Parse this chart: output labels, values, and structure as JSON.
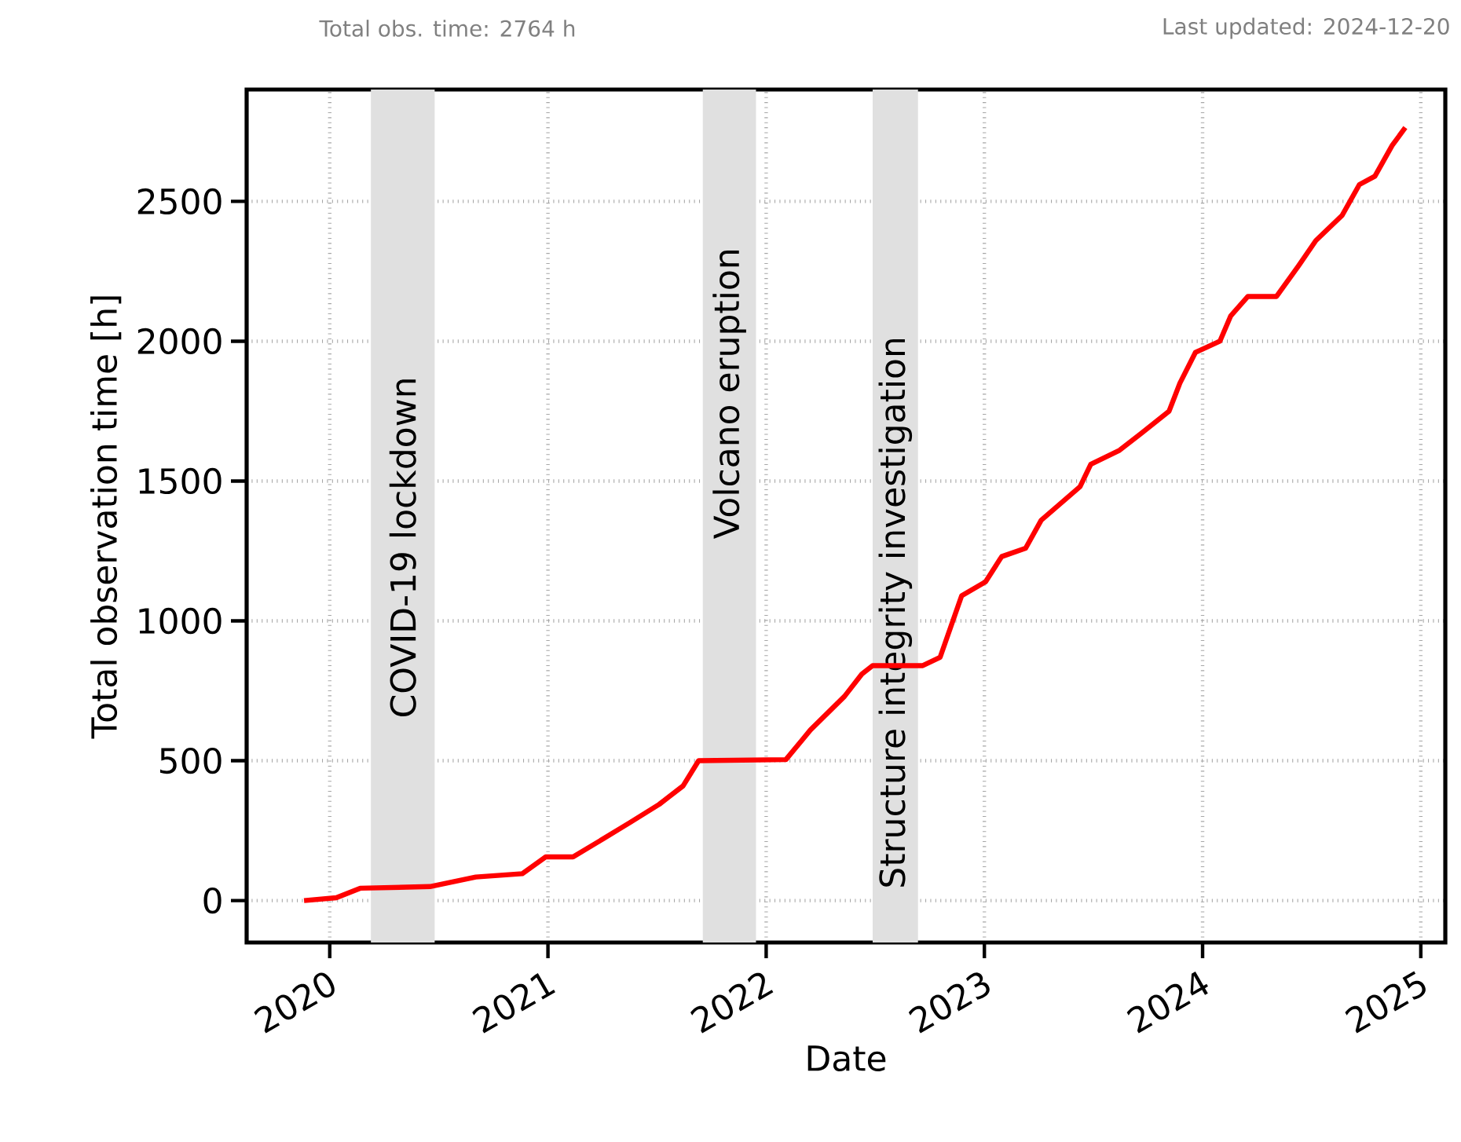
{
  "chart_data": {
    "type": "line",
    "annotations": [
      "Total obs. time: 2764 h",
      "Last updated: 2024-12-20"
    ],
    "xlabel": "Date",
    "ylabel": "Total observation time [h]",
    "x": [
      "2019-11-19",
      "2020-01-12",
      "2020-02-21",
      "2020-06-17",
      "2020-09-02",
      "2020-11-19",
      "2020-12-28",
      "2021-02-12",
      "2021-04-06",
      "2021-05-19",
      "2021-07-06",
      "2021-08-15",
      "2021-09-10",
      "2022-02-03",
      "2022-03-16",
      "2022-05-12",
      "2022-06-10",
      "2022-06-28",
      "2022-09-20",
      "2022-10-19",
      "2022-11-24",
      "2023-01-03",
      "2023-01-30",
      "2023-03-11",
      "2023-04-06",
      "2023-06-10",
      "2023-06-28",
      "2023-08-15",
      "2023-09-20",
      "2023-11-06",
      "2023-11-24",
      "2023-12-20",
      "2024-01-30",
      "2024-02-17",
      "2024-03-17",
      "2024-05-04",
      "2024-06-10",
      "2024-07-09",
      "2024-08-22",
      "2024-09-20",
      "2024-10-16",
      "2024-11-14",
      "2024-12-06"
    ],
    "series": [
      {
        "color": "#ff0000",
        "values": [
          0,
          10,
          44,
          50,
          84,
          96,
          156,
          156,
          224,
          280,
          344,
          410,
          500,
          504,
          610,
          730,
          810,
          840,
          840,
          870,
          1090,
          1140,
          1230,
          1260,
          1360,
          1480,
          1560,
          1610,
          1670,
          1750,
          1850,
          1960,
          2000,
          2090,
          2160,
          2160,
          2270,
          2360,
          2450,
          2560,
          2590,
          2700,
          2764
        ]
      }
    ],
    "xlim": [
      "2019-08-15",
      "2025-02-11"
    ],
    "xticks": [
      "2020",
      "2021",
      "2022",
      "2023",
      "2024",
      "2025"
    ],
    "ylim": [
      -150,
      2900
    ],
    "yticks": [
      0,
      500,
      1000,
      1500,
      2000,
      2500
    ],
    "bands": [
      {
        "axis": "x",
        "from": "2020-03-10",
        "to": "2020-06-25",
        "label": "COVID-19 lockdown",
        "color": "#e0e0e0"
      },
      {
        "axis": "x",
        "from": "2021-09-17",
        "to": "2021-12-15",
        "label": "Volcano eruption",
        "color": "#e0e0e0"
      },
      {
        "axis": "x",
        "from": "2022-06-28",
        "to": "2022-09-12",
        "label": "Structure integrity investigation",
        "color": "#e0e0e0"
      }
    ],
    "grid": true
  }
}
